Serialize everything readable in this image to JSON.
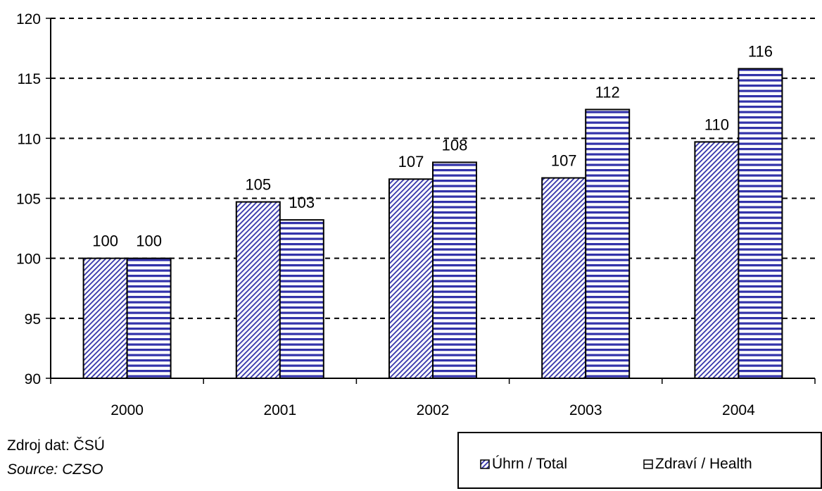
{
  "chart_data": {
    "type": "bar",
    "categories": [
      "2000",
      "2001",
      "2002",
      "2003",
      "2004"
    ],
    "series": [
      {
        "name": "Úhrn / Total",
        "values": [
          100,
          104.7,
          106.6,
          106.7,
          109.7
        ],
        "labels": [
          "100",
          "105",
          "107",
          "107",
          "110"
        ],
        "pattern": "diagonal",
        "color": "#3333aa"
      },
      {
        "name": "Zdraví / Health",
        "values": [
          100,
          103.2,
          108.0,
          112.4,
          115.8
        ],
        "labels": [
          "100",
          "103",
          "108",
          "112",
          "116"
        ],
        "pattern": "horizontal",
        "color": "#3333aa"
      }
    ],
    "y_ticks": [
      "90",
      "95",
      "100",
      "105",
      "110",
      "115",
      "120"
    ],
    "ylim": [
      90,
      120
    ],
    "grid": "dashed horizontal",
    "legend_position": "bottom-right"
  },
  "source": {
    "czech": "Zdroj dat: ČSÚ",
    "english": "Source: CZSO"
  }
}
